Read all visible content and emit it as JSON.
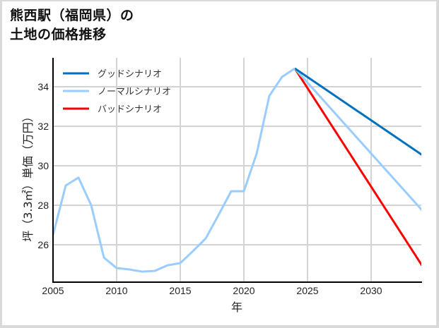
{
  "chart": {
    "title_line1": "熊西駅（福岡県）の",
    "title_line2": "土地の価格推移"
  },
  "colors": {
    "good": "#0070c0",
    "normal": "#99ccff",
    "bad": "#ff0000",
    "grid": "#d3d3d3",
    "axis": "#000000"
  },
  "chart_data": {
    "type": "line",
    "title": "熊西駅（福岡県）の土地の価格推移",
    "xlabel": "年",
    "ylabel": "坪（3.3㎡）単価（万円）",
    "xlim": [
      2005,
      2034
    ],
    "ylim": [
      24.9,
      35.5
    ],
    "x_ticks": [
      2005,
      2010,
      2015,
      2020,
      2025,
      2030
    ],
    "y_ticks": [
      26,
      28,
      30,
      32,
      34
    ],
    "grid": true,
    "legend_position": "upper left",
    "series": [
      {
        "name": "historical",
        "color": "#99ccff",
        "x": [
          2005,
          2006,
          2007,
          2008,
          2009,
          2010,
          2011,
          2012,
          2013,
          2014,
          2015,
          2016,
          2017,
          2018,
          2019,
          2020,
          2021,
          2022,
          2023,
          2024
        ],
        "values": [
          26.5,
          29.0,
          29.4,
          28.0,
          25.35,
          24.82,
          24.75,
          24.64,
          24.68,
          24.96,
          25.07,
          25.68,
          26.32,
          27.5,
          28.71,
          28.71,
          30.61,
          33.54,
          34.5,
          34.93
        ]
      },
      {
        "name": "グッドシナリオ",
        "color": "#0070c0",
        "x": [
          2024,
          2034
        ],
        "values": [
          34.93,
          30.55
        ]
      },
      {
        "name": "ノーマルシナリオ",
        "color": "#99ccff",
        "x": [
          2024,
          2034
        ],
        "values": [
          34.93,
          27.75
        ]
      },
      {
        "name": "バッドシナリオ",
        "color": "#ff0000",
        "x": [
          2024,
          2034
        ],
        "values": [
          34.93,
          24.95
        ]
      }
    ]
  },
  "legend": {
    "items": [
      {
        "label": "グッドシナリオ",
        "color": "#0070c0"
      },
      {
        "label": "ノーマルシナリオ",
        "color": "#99ccff"
      },
      {
        "label": "バッドシナリオ",
        "color": "#ff0000"
      }
    ]
  },
  "axes": {
    "xlabel": "年",
    "ylabel": "坪（3.3㎡）単価（万円）",
    "x_tick_labels": [
      "2005",
      "2010",
      "2015",
      "2020",
      "2025",
      "2030"
    ],
    "y_tick_labels": [
      "34",
      "32",
      "30",
      "28",
      "26"
    ]
  }
}
